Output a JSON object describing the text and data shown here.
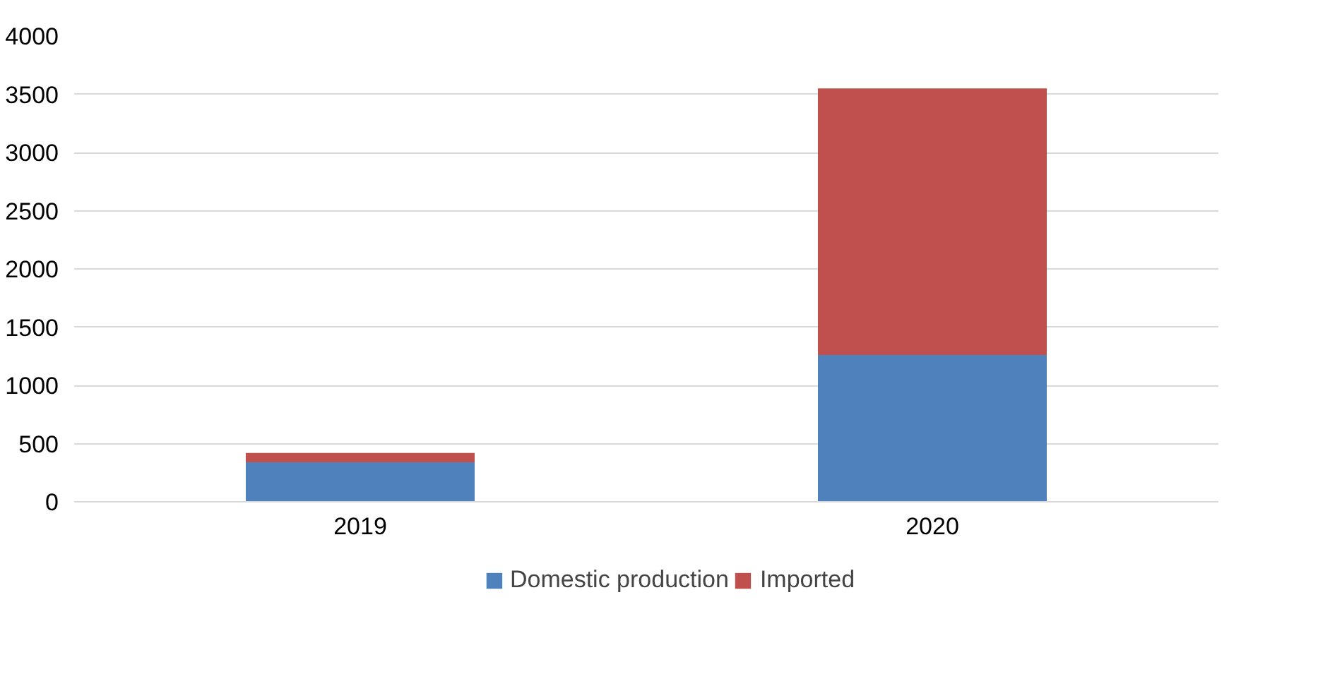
{
  "chart_data": {
    "type": "bar",
    "stacked": true,
    "categories": [
      "2019",
      "2020"
    ],
    "series": [
      {
        "name": "Domestic production",
        "color": "#4f81bd",
        "values": [
          340,
          1260
        ]
      },
      {
        "name": "Imported",
        "color": "#c0504d",
        "values": [
          80,
          2290
        ]
      }
    ],
    "ylim": [
      0,
      4000
    ],
    "yticks": [
      0,
      500,
      1000,
      1500,
      2000,
      2500,
      3000,
      3500,
      4000
    ],
    "grid": "y",
    "legend": "bottom"
  }
}
